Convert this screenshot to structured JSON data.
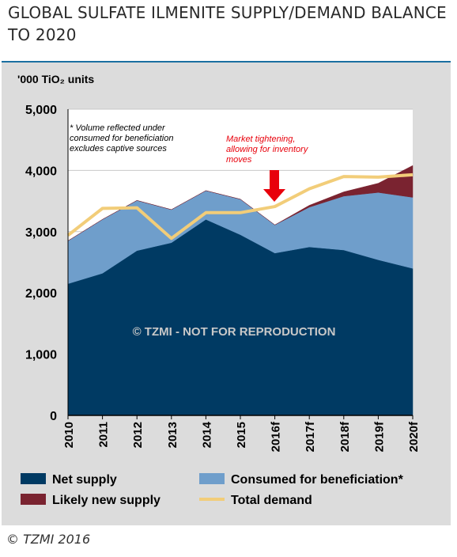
{
  "page": {
    "title": "GLOBAL SULFATE ILMENITE SUPPLY/DEMAND BALANCE TO 2020",
    "copyright": "© TZMI 2016"
  },
  "colors": {
    "net_supply": "#003a63",
    "consumed": "#6f9ecb",
    "likely_new": "#7a2330",
    "total_demand": "#f2cd79",
    "arrow": "#e8000b",
    "annotation": "#e8000b",
    "panel_bg": "#dcdcdc",
    "plot_bg": "#ffffff",
    "accent_rule": "#1a6fa1"
  },
  "chart_data": {
    "type": "area",
    "ylabel": "'000 TiO₂ units",
    "ylim": [
      0,
      5000
    ],
    "yticks": [
      0,
      1000,
      2000,
      3000,
      4000,
      5000
    ],
    "ytick_labels": [
      "0",
      "1,000",
      "2,000",
      "3,000",
      "4,000",
      "5,000"
    ],
    "grid": true,
    "categories": [
      "2010",
      "2011",
      "2012",
      "2013",
      "2014",
      "2015",
      "2016f",
      "2017f",
      "2018f",
      "2019f",
      "2020f"
    ],
    "series": [
      {
        "name": "Net supply",
        "kind": "area",
        "stack": true,
        "color_key": "net_supply",
        "values": [
          2150,
          2320,
          2690,
          2820,
          3200,
          2950,
          2650,
          2750,
          2700,
          2540,
          2400
        ]
      },
      {
        "name": "Consumed for beneficiation*",
        "kind": "area",
        "stack": true,
        "color_key": "consumed",
        "values": [
          700,
          880,
          820,
          540,
          470,
          580,
          460,
          650,
          880,
          1100,
          1160
        ]
      },
      {
        "name": "Likely new supply",
        "kind": "area",
        "stack": true,
        "color_key": "likely_new",
        "values": [
          0,
          0,
          0,
          0,
          0,
          0,
          0,
          30,
          70,
          150,
          520
        ]
      },
      {
        "name": "Total demand",
        "kind": "line",
        "color_key": "total_demand",
        "values": [
          2940,
          3380,
          3390,
          2890,
          3310,
          3310,
          3410,
          3700,
          3900,
          3890,
          3930
        ]
      }
    ],
    "annotations": {
      "footnote": "* Volume reflected under consumed for beneficiation excludes captive sources",
      "market": "Market tightening, allowing for inventory moves",
      "watermark": "© TZMI - NOT FOR REPRODUCTION"
    },
    "legend": {
      "placement": "bottom",
      "items": [
        {
          "label": "Net supply",
          "color_key": "net_supply",
          "kind": "box"
        },
        {
          "label": "Consumed for beneficiation*",
          "color_key": "consumed",
          "kind": "box"
        },
        {
          "label": "Likely new supply",
          "color_key": "likely_new",
          "kind": "box"
        },
        {
          "label": "Total demand",
          "color_key": "total_demand",
          "kind": "line"
        }
      ]
    }
  }
}
